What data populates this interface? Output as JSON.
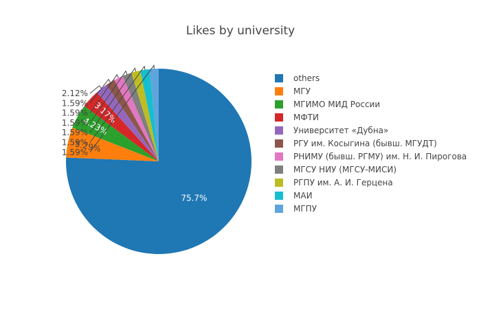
{
  "chart_data": {
    "type": "pie",
    "title": "Likes by university",
    "slices": [
      {
        "name": "others",
        "value": 75.7,
        "label": "75.7%",
        "color": "#1f77b4"
      },
      {
        "name": "МГУ",
        "value": 5.29,
        "label": "5.29%",
        "color": "#ff7f0e"
      },
      {
        "name": "МГИМО МИД России",
        "value": 4.23,
        "label": "4.23%",
        "color": "#2ca02c"
      },
      {
        "name": "МФТИ",
        "value": 3.17,
        "label": "3.17%",
        "color": "#d62728"
      },
      {
        "name": "Университет «Дубна»",
        "value": 2.12,
        "label": "2.12%",
        "color": "#9467bd"
      },
      {
        "name": "РГУ им. Косыгина (бывш. МГУДТ)",
        "value": 1.59,
        "label": "1.59%",
        "color": "#8c564b"
      },
      {
        "name": "РНИМУ (бывш. РГМУ) им. Н. И. Пирогова",
        "value": 1.59,
        "label": "1.59%",
        "color": "#e377c2"
      },
      {
        "name": "МГСУ НИУ (МГСУ-МИСИ)",
        "value": 1.59,
        "label": "1.59%",
        "color": "#7f7f7f"
      },
      {
        "name": "РГПУ им. А. И. Герцена",
        "value": 1.59,
        "label": "1.59%",
        "color": "#bcbd22"
      },
      {
        "name": "МАИ",
        "value": 1.59,
        "label": "1.59%",
        "color": "#17becf"
      },
      {
        "name": "МГПУ",
        "value": 1.59,
        "label": "1.59%",
        "color": "#5da5da"
      }
    ],
    "legend_position": "right",
    "direction": "clockwise",
    "start": "top"
  }
}
